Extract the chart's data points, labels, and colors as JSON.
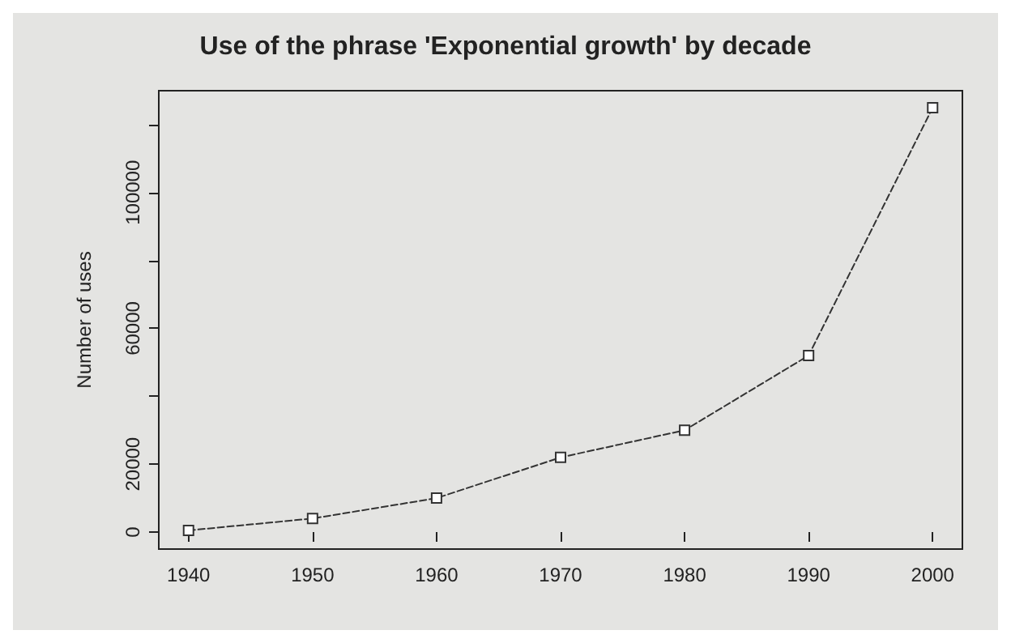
{
  "chart_data": {
    "type": "line",
    "title": "Use of the phrase 'Exponential growth' by decade",
    "ylabel": "Number of uses",
    "x": [
      1940,
      1950,
      1960,
      1970,
      1980,
      1990,
      2000
    ],
    "series": [
      {
        "color": "#333333",
        "values": [
          500,
          4000,
          10000,
          22000,
          30000,
          52000,
          125000
        ]
      }
    ],
    "xlim": [
      1937.6,
      2002.4
    ],
    "xticks": [
      1940,
      1950,
      1960,
      1970,
      1980,
      1990,
      2000
    ],
    "ylim": [
      -5000,
      130000
    ],
    "yticks": [
      0,
      20000,
      {
        "value": 40000,
        "label": null
      },
      60000,
      {
        "value": 80000,
        "label": null
      },
      100000,
      {
        "value": 120000,
        "label": null
      }
    ],
    "grid": false,
    "marker": "square",
    "line_style": "dashed"
  }
}
